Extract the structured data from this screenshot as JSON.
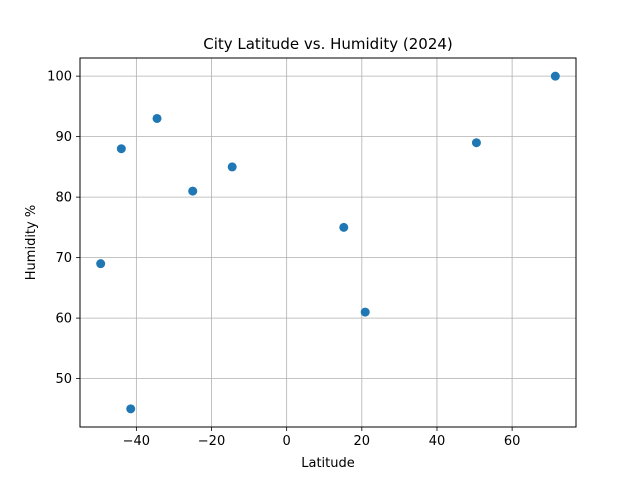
{
  "chart_data": {
    "type": "scatter",
    "title": "City Latitude vs. Humidity (2024)",
    "xlabel": "Latitude",
    "ylabel": "Humidity %",
    "xlim": [
      -55,
      77
    ],
    "ylim": [
      42,
      103
    ],
    "xticks": [
      -40,
      -20,
      0,
      20,
      40,
      60
    ],
    "xtick_labels": [
      "−40",
      "−20",
      "0",
      "20",
      "40",
      "60"
    ],
    "yticks": [
      50,
      60,
      70,
      80,
      90,
      100
    ],
    "ytick_labels": [
      "50",
      "60",
      "70",
      "80",
      "90",
      "100"
    ],
    "grid": true,
    "marker_color": "#1f77b4",
    "points": [
      {
        "x": -49.5,
        "y": 69
      },
      {
        "x": -44.0,
        "y": 88
      },
      {
        "x": -41.5,
        "y": 45
      },
      {
        "x": -34.5,
        "y": 93
      },
      {
        "x": -25.0,
        "y": 81
      },
      {
        "x": -14.5,
        "y": 85
      },
      {
        "x": 15.2,
        "y": 75
      },
      {
        "x": 20.9,
        "y": 61
      },
      {
        "x": 50.5,
        "y": 89
      },
      {
        "x": 71.5,
        "y": 100
      }
    ]
  }
}
